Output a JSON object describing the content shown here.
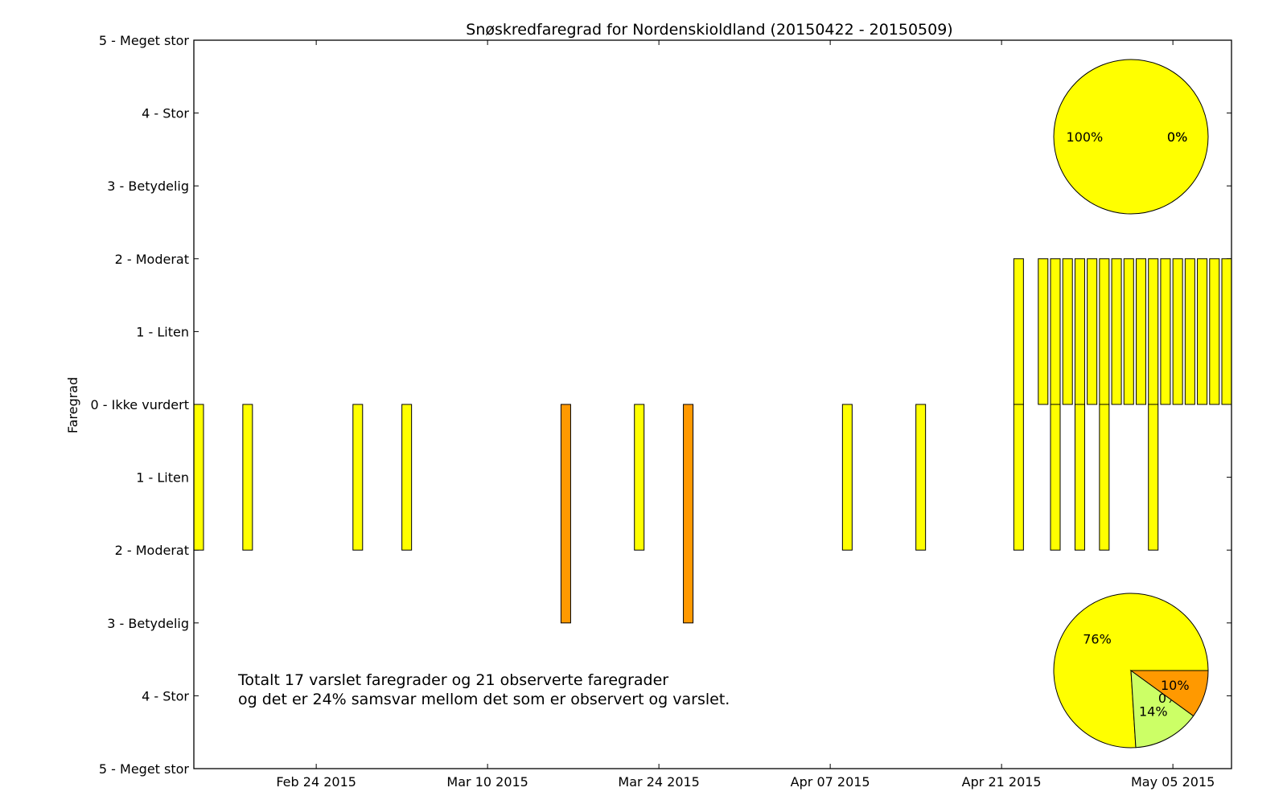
{
  "chart_data": {
    "type": "bar",
    "title": "Snøskredfaregrad for Nordenskioldland (20150422 - 20150509)",
    "ylabel": "Faregrad",
    "xlim": [
      "2015-02-14",
      "2015-05-09"
    ],
    "ylim": [
      -5,
      5
    ],
    "x_ticks": [
      {
        "date": "2015-02-24",
        "label": "Feb 24 2015"
      },
      {
        "date": "2015-03-10",
        "label": "Mar 10 2015"
      },
      {
        "date": "2015-03-24",
        "label": "Mar 24 2015"
      },
      {
        "date": "2015-04-07",
        "label": "Apr 07 2015"
      },
      {
        "date": "2015-04-21",
        "label": "Apr 21 2015"
      },
      {
        "date": "2015-05-05",
        "label": "May 05 2015"
      }
    ],
    "y_ticks": [
      {
        "value": 5,
        "label": "5 - Meget stor"
      },
      {
        "value": 4,
        "label": "4 - Stor"
      },
      {
        "value": 3,
        "label": "3 - Betydelig"
      },
      {
        "value": 2,
        "label": "2 - Moderat"
      },
      {
        "value": 1,
        "label": "1 - Liten"
      },
      {
        "value": 0,
        "label": "0 - Ikke vurdert"
      },
      {
        "value": -1,
        "label": "1 - Liten"
      },
      {
        "value": -2,
        "label": "2 - Moderat"
      },
      {
        "value": -3,
        "label": "3 - Betydelig"
      },
      {
        "value": -4,
        "label": "4 - Stor"
      },
      {
        "value": -5,
        "label": "5 - Meget stor"
      }
    ],
    "colors": {
      "level1": "#ccff66",
      "level2": "#ffff00",
      "level3": "#ff9900",
      "level4": "#ff0000",
      "edge": "#000000"
    },
    "series": [
      {
        "direction": "up",
        "bars": [
          {
            "date": "2015-04-22",
            "level": 2
          },
          {
            "date": "2015-04-24",
            "level": 2
          },
          {
            "date": "2015-04-25",
            "level": 2
          },
          {
            "date": "2015-04-26",
            "level": 2
          },
          {
            "date": "2015-04-27",
            "level": 2
          },
          {
            "date": "2015-04-28",
            "level": 2
          },
          {
            "date": "2015-04-29",
            "level": 2
          },
          {
            "date": "2015-04-30",
            "level": 2
          },
          {
            "date": "2015-05-01",
            "level": 2
          },
          {
            "date": "2015-05-02",
            "level": 2
          },
          {
            "date": "2015-05-03",
            "level": 2
          },
          {
            "date": "2015-05-04",
            "level": 2
          },
          {
            "date": "2015-05-05",
            "level": 2
          },
          {
            "date": "2015-05-06",
            "level": 2
          },
          {
            "date": "2015-05-07",
            "level": 2
          },
          {
            "date": "2015-05-08",
            "level": 2
          },
          {
            "date": "2015-05-09",
            "level": 2
          }
        ]
      },
      {
        "direction": "down",
        "bars": [
          {
            "date": "2015-02-14",
            "level": 2
          },
          {
            "date": "2015-02-18",
            "level": 2
          },
          {
            "date": "2015-02-27",
            "level": 2
          },
          {
            "date": "2015-03-03",
            "level": 2
          },
          {
            "date": "2015-03-16",
            "level": 3
          },
          {
            "date": "2015-03-22",
            "level": 2
          },
          {
            "date": "2015-03-26",
            "level": 3
          },
          {
            "date": "2015-04-08",
            "level": 2
          },
          {
            "date": "2015-04-14",
            "level": 2
          },
          {
            "date": "2015-04-22",
            "level": 2
          },
          {
            "date": "2015-04-25",
            "level": 2
          },
          {
            "date": "2015-04-27",
            "level": 2
          },
          {
            "date": "2015-04-29",
            "level": 2
          },
          {
            "date": "2015-05-03",
            "level": 2
          }
        ]
      }
    ],
    "pies": [
      {
        "position": "top-right",
        "slices": [
          {
            "value": 100,
            "label": "100%",
            "color": "#ffff00"
          },
          {
            "value": 0,
            "label": "0%",
            "color": "#ccff66"
          },
          {
            "value": 0,
            "label": "0%",
            "color": "#ff9900"
          }
        ]
      },
      {
        "position": "bottom-right",
        "slices": [
          {
            "value": 76,
            "label": "76%",
            "color": "#ffff00"
          },
          {
            "value": 14,
            "label": "14%",
            "color": "#ccff66"
          },
          {
            "value": 0,
            "label": "0%",
            "color": "#ff0000"
          },
          {
            "value": 10,
            "label": "10%",
            "color": "#ff9900"
          }
        ]
      }
    ],
    "annotation": [
      "Totalt 17 varslet faregrader og 21 observerte faregrader",
      "og det er 24% samsvar mellom det som er observert og varslet."
    ]
  }
}
